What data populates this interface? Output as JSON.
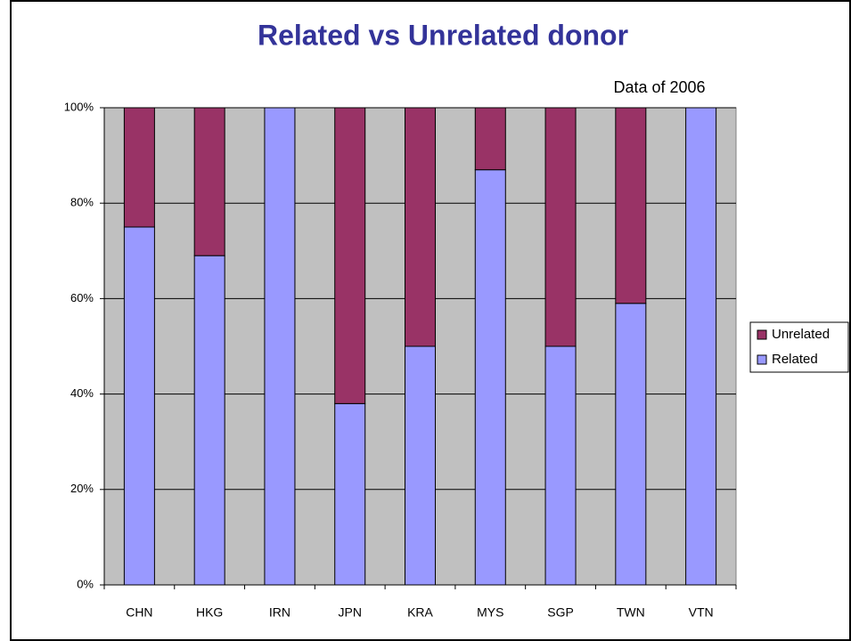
{
  "chart_data": {
    "type": "stacked_bar",
    "title": "Related vs Unrelated donor",
    "subtitle": "Data of 2006",
    "categories": [
      "CHN",
      "HKG",
      "IRN",
      "JPN",
      "KRA",
      "MYS",
      "SGP",
      "TWN",
      "VTN"
    ],
    "series": [
      {
        "name": "Related",
        "color": "#9999ff",
        "values": [
          75,
          69,
          100,
          38,
          50,
          87,
          50,
          59,
          100
        ]
      },
      {
        "name": "Unrelated",
        "color": "#993366",
        "values": [
          25,
          31,
          0,
          62,
          50,
          13,
          50,
          41,
          0
        ]
      }
    ],
    "ylim": [
      0,
      100
    ],
    "yticks": [
      {
        "value": 0,
        "label": "0%"
      },
      {
        "value": 20,
        "label": "20%"
      },
      {
        "value": 40,
        "label": "40%"
      },
      {
        "value": 60,
        "label": "60%"
      },
      {
        "value": 80,
        "label": "80%"
      },
      {
        "value": 100,
        "label": "100%"
      }
    ],
    "grid": true,
    "legend": "right"
  }
}
